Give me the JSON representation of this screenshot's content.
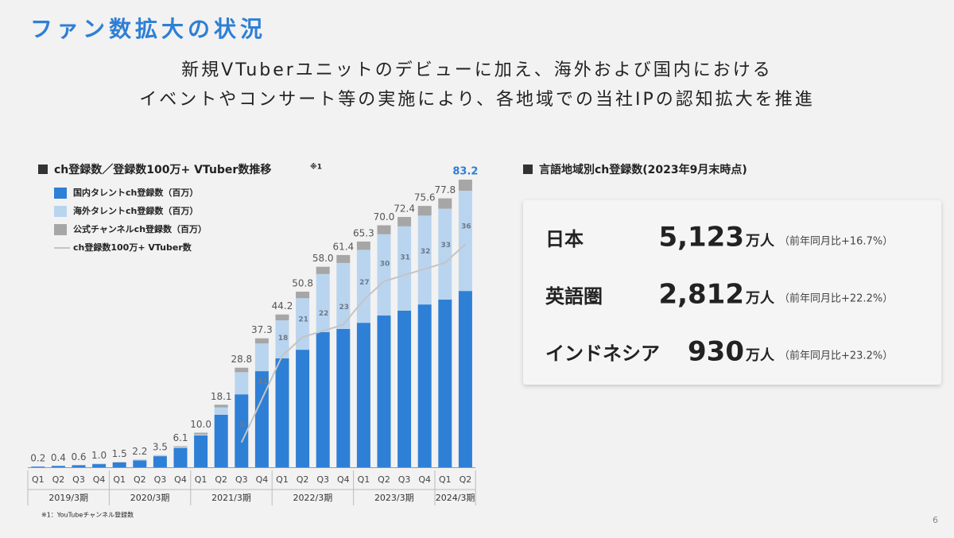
{
  "header": {
    "title": "ファン数拡大の状況",
    "lines": [
      "新規VTuberユニットのデビューに加え、海外および国内における",
      "イベントやコンサート等の実施により、各地域での当社IPの認知拡大を推進"
    ]
  },
  "chart_data": {
    "type": "bar",
    "stacked": true,
    "title": "ch登録数／登録数100万+ VTuber数推移",
    "title_note": "※1",
    "categories": [
      "Q1",
      "Q2",
      "Q3",
      "Q4",
      "Q1",
      "Q2",
      "Q3",
      "Q4",
      "Q1",
      "Q2",
      "Q3",
      "Q4",
      "Q1",
      "Q2",
      "Q3",
      "Q4",
      "Q1",
      "Q2",
      "Q3",
      "Q4",
      "Q1",
      "Q2"
    ],
    "groups": [
      "2019/3期",
      "2020/3期",
      "2021/3期",
      "2022/3期",
      "2023/3期",
      "2024/3期"
    ],
    "totals": [
      0.2,
      0.4,
      0.6,
      1.0,
      1.5,
      2.2,
      3.5,
      6.1,
      10.0,
      18.1,
      28.8,
      37.3,
      44.2,
      50.8,
      58.0,
      61.4,
      65.3,
      70.0,
      72.4,
      75.6,
      77.8,
      83.2
    ],
    "value_labels": [
      "0.2",
      "0.4",
      "0.6",
      "1.0",
      "1.5",
      "2.2",
      "3.5",
      "6.1",
      "10.0",
      "18.1",
      "28.8",
      "37.3",
      "44.2",
      "50.8",
      "58.0",
      "61.4",
      "65.3",
      "70.0",
      "72.4",
      "75.6",
      "77.8",
      "83.2"
    ],
    "series": [
      {
        "name": "国内タレントch登録数（百万）",
        "color": "#2e7fd6",
        "values": [
          0.2,
          0.4,
          0.6,
          0.9,
          1.4,
          2.0,
          3.2,
          5.6,
          9.2,
          15.2,
          21.1,
          27.8,
          31.5,
          34.0,
          39.1,
          40.0,
          41.8,
          43.9,
          45.3,
          47.1,
          48.5,
          51.0
        ]
      },
      {
        "name": "海外タレントch登録数（百万）",
        "color": "#b9d4ef",
        "values": [
          0,
          0,
          0,
          0,
          0,
          0.1,
          0.2,
          0.3,
          0.3,
          2.1,
          6.4,
          8.0,
          11.0,
          14.9,
          16.8,
          19.1,
          21.1,
          23.5,
          24.4,
          25.7,
          26.3,
          29.0
        ]
      },
      {
        "name": "公式チャンネルch登録数（百万）",
        "color": "#a6a6a6",
        "values": [
          0,
          0,
          0,
          0.1,
          0.1,
          0.1,
          0.1,
          0.2,
          0.5,
          0.8,
          1.3,
          1.5,
          1.7,
          1.9,
          2.1,
          2.3,
          2.4,
          2.6,
          2.7,
          2.8,
          3.0,
          3.2
        ]
      },
      {
        "name": "ch登録数100万+ VTuber数",
        "color": "#c4c4c4",
        "type": "line",
        "axis": "y2",
        "values": [
          null,
          null,
          null,
          null,
          null,
          null,
          null,
          null,
          null,
          null,
          4,
          11,
          18,
          21,
          22,
          23,
          27,
          30,
          31,
          32,
          33,
          36
        ]
      }
    ],
    "footnote": "※1：YouTubeチャンネル登録数"
  },
  "panel": {
    "title": "言語地域別ch登録数(2023年9月末時点)",
    "rows": [
      {
        "region": "日本",
        "value": "5,123",
        "unit": "万人",
        "change": "（前年同月比+16.7%）"
      },
      {
        "region": "英語圏",
        "value": "2,812",
        "unit": "万人",
        "change": "（前年同月比+22.2%）"
      },
      {
        "region": "インドネシア",
        "value": "930",
        "unit": "万人",
        "change": "（前年同月比+23.2%）"
      }
    ]
  },
  "page_number": "6"
}
